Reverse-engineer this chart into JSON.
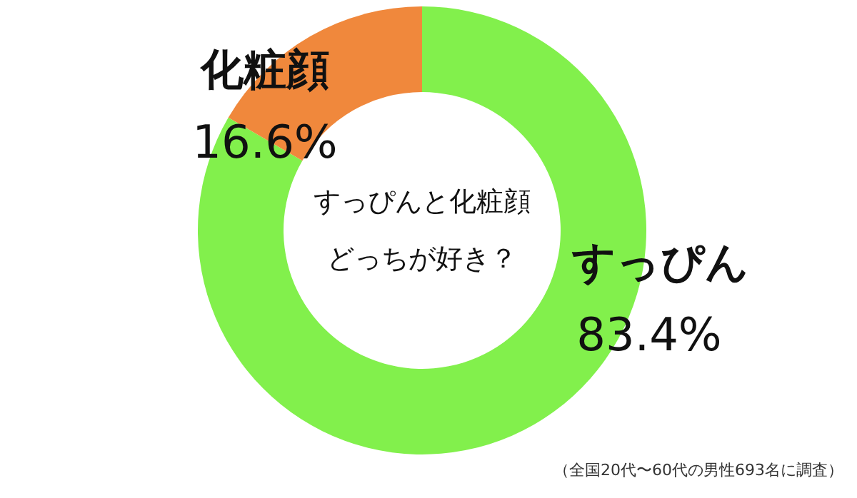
{
  "chart_data": {
    "type": "donut",
    "title": "すっぴんと化粧顔",
    "subtitle": "どっちが好き？",
    "categories": [
      "すっぴん",
      "化粧顔"
    ],
    "values": [
      83.4,
      16.6
    ],
    "value_labels": [
      "83.4%",
      "16.6%"
    ],
    "colors": [
      "#82f04c",
      "#f0883c"
    ],
    "annotations": [
      "（全国20代〜60代の男性693名に調査）"
    ]
  }
}
